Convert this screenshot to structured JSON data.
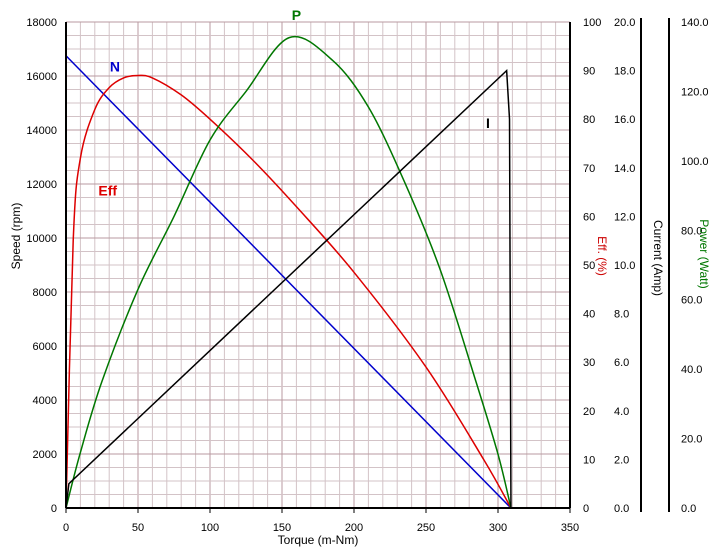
{
  "chart_data": {
    "type": "line",
    "title": "",
    "xlabel": "Torque (m-Nm)",
    "x_ticks": [
      0,
      50,
      100,
      150,
      200,
      250,
      300,
      350
    ],
    "xlim": [
      0,
      350
    ],
    "grid": true,
    "axes": {
      "speed": {
        "label": "Speed (rpm)",
        "color": "#000000",
        "ylim": [
          0,
          18000
        ],
        "ticks": [
          "0",
          "2000",
          "4000",
          "6000",
          "8000",
          "10000",
          "12000",
          "14000",
          "16000",
          "18000"
        ]
      },
      "eff": {
        "label": "Eff. (%)",
        "color": "#cc0000",
        "ylim": [
          0,
          100
        ],
        "ticks": [
          "0",
          "10",
          "20",
          "30",
          "40",
          "50",
          "60",
          "70",
          "80",
          "90",
          "100"
        ]
      },
      "current": {
        "label": "Current (Amp)",
        "color": "#000000",
        "ylim": [
          0,
          20
        ],
        "ticks": [
          "0.0",
          "2.0",
          "4.0",
          "6.0",
          "8.0",
          "10.0",
          "12.0",
          "14.0",
          "16.0",
          "18.0",
          "20.0"
        ]
      },
      "power": {
        "label": "Power (Watt)",
        "color": "#007700",
        "ylim": [
          0,
          140
        ],
        "ticks": [
          "0.0",
          "20.0",
          "40.0",
          "60.0",
          "80.0",
          "100.0",
          "120.0",
          "140.0"
        ]
      }
    },
    "series": [
      {
        "name": "N",
        "axis": "speed",
        "color": "#0000cc",
        "x": [
          0,
          309
        ],
        "y": [
          16750,
          0
        ]
      },
      {
        "name": "Eff",
        "axis": "eff",
        "color": "#dd0000",
        "x": [
          0,
          5,
          10,
          20,
          30,
          40,
          50,
          60,
          80,
          100,
          130,
          160,
          200,
          250,
          290,
          309
        ],
        "y": [
          0,
          55,
          72,
          82,
          86.5,
          88.5,
          89,
          88.5,
          85,
          80,
          71.5,
          62,
          48.5,
          29,
          10,
          0
        ]
      },
      {
        "name": "P",
        "axis": "power",
        "color": "#007700",
        "x": [
          0,
          10,
          25,
          50,
          75,
          100,
          125,
          155,
          185,
          210,
          235,
          260,
          285,
          300,
          309
        ],
        "y": [
          0,
          16,
          36.5,
          63,
          84,
          106,
          120,
          135.5,
          129,
          115.5,
          94,
          68.5,
          36,
          15.5,
          0
        ]
      },
      {
        "name": "I",
        "axis": "current",
        "color": "#000000",
        "x": [
          0,
          2,
          306,
          308,
          309
        ],
        "y": [
          0,
          1.0,
          18.0,
          16.0,
          0
        ]
      }
    ],
    "series_labels": [
      {
        "name": "N",
        "text": "N",
        "color": "#0000cc",
        "at_x": 34,
        "at_axis": "speed",
        "at_y": 16100
      },
      {
        "name": "Eff",
        "text": "Eff",
        "color": "#dd0000",
        "at_x": 29,
        "at_axis": "speed",
        "at_y": 11500
      },
      {
        "name": "P",
        "text": "P",
        "color": "#007700",
        "at_x": 160,
        "at_axis": "speed",
        "at_y": 18000
      },
      {
        "name": "I",
        "text": "I",
        "color": "#000000",
        "at_x": 293,
        "at_axis": "speed",
        "at_y": 14000
      }
    ]
  }
}
